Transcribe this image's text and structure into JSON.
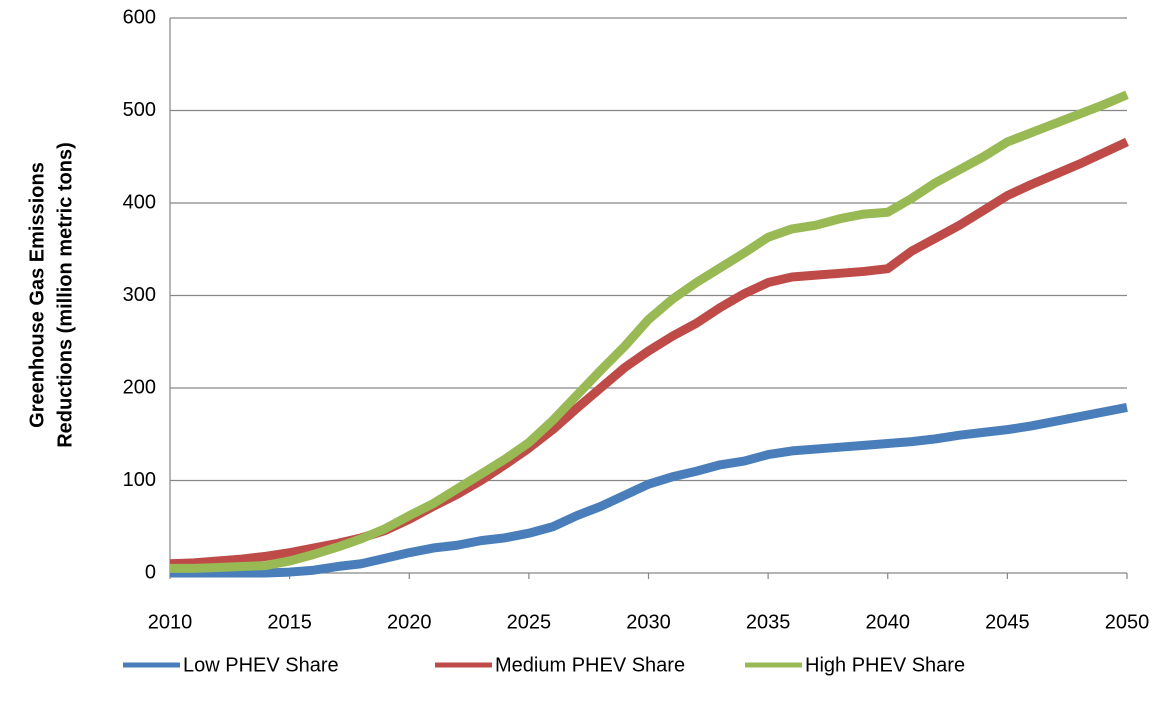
{
  "chart_data": {
    "type": "line",
    "ylabel": [
      "Greenhouse Gas Emissions",
      "Reductions (million metric tons)"
    ],
    "x": [
      2010,
      2011,
      2012,
      2013,
      2014,
      2015,
      2016,
      2017,
      2018,
      2019,
      2020,
      2021,
      2022,
      2023,
      2024,
      2025,
      2026,
      2027,
      2028,
      2029,
      2030,
      2031,
      2032,
      2033,
      2034,
      2035,
      2036,
      2037,
      2038,
      2039,
      2040,
      2041,
      2042,
      2043,
      2044,
      2045,
      2046,
      2047,
      2048,
      2049,
      2050
    ],
    "series": [
      {
        "name": "Low PHEV Share",
        "color": "#4a7ebb",
        "values": [
          0,
          0,
          0,
          0,
          0,
          1,
          3,
          7,
          10,
          16,
          22,
          27,
          30,
          35,
          38,
          43,
          50,
          62,
          72,
          84,
          96,
          104,
          110,
          117,
          121,
          128,
          132,
          134,
          136,
          138,
          140,
          142,
          145,
          149,
          152,
          155,
          159,
          164,
          169,
          174,
          179
        ]
      },
      {
        "name": "Medium PHEV Share",
        "color": "#be4b48",
        "values": [
          10,
          11,
          13,
          15,
          18,
          22,
          27,
          32,
          38,
          46,
          58,
          72,
          85,
          100,
          117,
          135,
          155,
          178,
          200,
          222,
          240,
          256,
          270,
          287,
          302,
          314,
          320,
          322,
          324,
          326,
          329,
          348,
          362,
          376,
          392,
          408,
          420,
          431,
          442,
          454,
          466
        ]
      },
      {
        "name": "High PHEV Share",
        "color": "#98b954",
        "values": [
          5,
          5,
          6,
          7,
          8,
          13,
          20,
          28,
          37,
          48,
          62,
          75,
          91,
          107,
          123,
          141,
          165,
          192,
          219,
          245,
          274,
          296,
          314,
          330,
          346,
          363,
          372,
          376,
          383,
          388,
          390,
          405,
          422,
          436,
          450,
          466,
          476,
          486,
          496,
          506,
          517
        ]
      }
    ],
    "xlim": [
      2010,
      2050
    ],
    "xticks": [
      2010,
      2015,
      2020,
      2025,
      2030,
      2035,
      2040,
      2045,
      2050
    ],
    "ylim": [
      0,
      600
    ],
    "yticks": [
      0,
      100,
      200,
      300,
      400,
      500,
      600
    ],
    "grid": true,
    "legend": "bottom"
  }
}
